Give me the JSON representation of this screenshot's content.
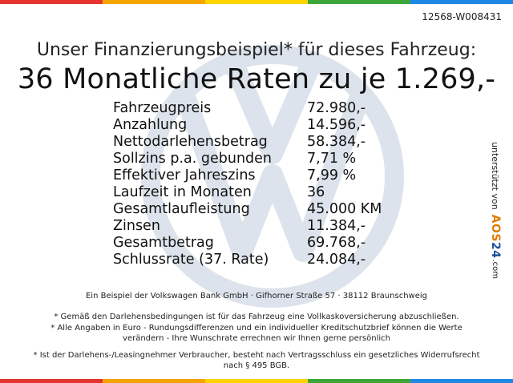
{
  "reference_id": "12568-W008431",
  "headline": "Unser Finanzierungsbeispiel* für dieses Fahrzeug:",
  "monthly_rate": "36 Monatliche Raten zu je 1.269,-",
  "details": [
    {
      "label": "Fahrzeugpreis",
      "value": "72.980,-"
    },
    {
      "label": "Anzahlung",
      "value": "14.596,-"
    },
    {
      "label": "Nettodarlehensbetrag",
      "value": "58.384,-"
    },
    {
      "label": "Sollzins p.a. gebunden",
      "value": "7,71 %"
    },
    {
      "label": "Effektiver Jahreszins",
      "value": "7,99 %"
    },
    {
      "label": "Laufzeit in Monaten",
      "value": "36"
    },
    {
      "label": "Gesamtlaufleistung",
      "value": "45.000 KM"
    },
    {
      "label": "Zinsen",
      "value": "11.384,-"
    },
    {
      "label": "Gesamtbetrag",
      "value": "69.768,-"
    },
    {
      "label": "Schlussrate (37. Rate)",
      "value": "24.084,-"
    }
  ],
  "lender": "Ein Beispiel der Volkswagen Bank GmbH · Gifhorner Straße 57 · 38112 Braunschweig",
  "notes": [
    "* Gemäß den Darlehensbedingungen ist für das Fahrzeug eine Vollkaskoversicherung abzuschließen.",
    "* Alle Angaben in Euro - Rundungsdifferenzen und ein individueller Kreditschutzbrief können die Werte verändern - Ihre Wunschrate errechnen wir Ihnen gerne persönlich",
    "* Ist der Darlehens-/Leasingnehmer Verbraucher, besteht nach Vertragsschluss ein gesetzliches Widerrufsrecht nach § 495 BGB."
  ],
  "side_brand": {
    "text": "unterstützt von",
    "logo_part1": "AOS",
    "logo_part2": "24",
    "domain": ".com"
  },
  "colors": {
    "top_bar": [
      "#e3342f",
      "#f6a400",
      "#ffd400",
      "#3da639",
      "#1e88e5"
    ],
    "bottom_bar": [
      "#e3342f",
      "#f6a400",
      "#ffd400",
      "#3da639",
      "#1e88e5"
    ],
    "watermark": "#dde3ec"
  },
  "watermark_icon": "vw-logo-icon"
}
